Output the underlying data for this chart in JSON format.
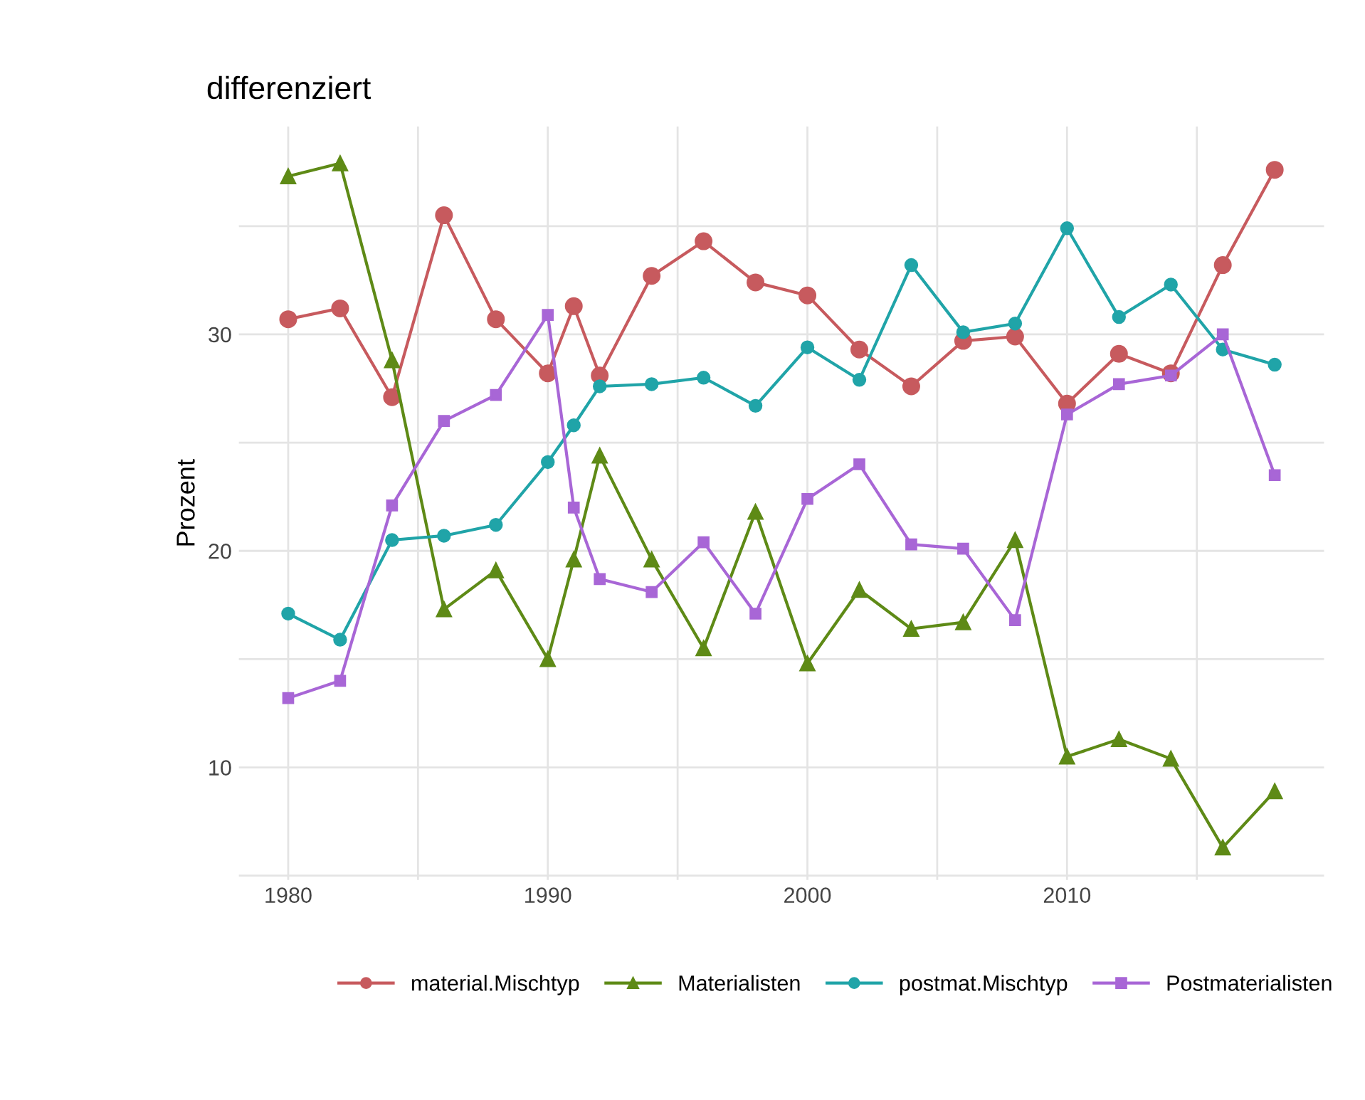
{
  "chart_data": {
    "type": "line",
    "title": "differenziert",
    "ylabel": "Prozent",
    "x": [
      1980,
      1982,
      1984,
      1986,
      1988,
      1990,
      1991,
      1992,
      1994,
      1996,
      1998,
      2000,
      2002,
      2004,
      2006,
      2008,
      2010,
      2012,
      2014,
      2016,
      2018
    ],
    "series": [
      {
        "name": "material.Mischtyp",
        "color": "#c75a5e",
        "marker": "circle",
        "values": [
          30.7,
          31.2,
          27.1,
          35.5,
          30.7,
          28.2,
          31.3,
          28.1,
          32.7,
          34.3,
          32.4,
          31.8,
          29.3,
          27.6,
          29.7,
          29.9,
          26.8,
          29.1,
          28.2,
          33.2,
          37.6
        ]
      },
      {
        "name": "Materialisten",
        "color": "#5e8a16",
        "marker": "triangle",
        "values": [
          37.3,
          37.9,
          28.8,
          17.3,
          19.1,
          15.0,
          19.6,
          24.4,
          19.6,
          15.5,
          21.8,
          14.8,
          18.2,
          16.4,
          16.7,
          20.5,
          10.5,
          11.3,
          10.4,
          6.3,
          8.9
        ]
      },
      {
        "name": "postmat.Mischtyp",
        "color": "#20a4a8",
        "marker": "circle",
        "values": [
          17.1,
          15.9,
          20.5,
          20.7,
          21.2,
          24.1,
          25.8,
          27.6,
          27.7,
          28.0,
          26.7,
          29.4,
          27.9,
          33.2,
          30.1,
          30.5,
          34.9,
          30.8,
          32.3,
          29.3,
          28.6
        ]
      },
      {
        "name": "Postmaterialisten",
        "color": "#a866d6",
        "marker": "square",
        "values": [
          13.2,
          14.0,
          22.1,
          26.0,
          27.2,
          30.9,
          22.0,
          18.7,
          18.1,
          20.4,
          17.1,
          22.4,
          24.0,
          20.3,
          20.1,
          16.8,
          26.3,
          27.7,
          28.1,
          30.0,
          23.5
        ]
      }
    ],
    "xlim": [
      1978.1,
      2019.9
    ],
    "ylim": [
      4.8,
      39.6
    ],
    "xticks": [
      1980,
      {
        "value": 1985,
        "label": null
      },
      1990,
      {
        "value": 1995,
        "label": null
      },
      2000,
      {
        "value": 2005,
        "label": null
      },
      2010,
      {
        "value": 2015,
        "label": null
      }
    ],
    "yticks": [
      {
        "value": 5,
        "label": null
      },
      10,
      {
        "value": 15,
        "label": null
      },
      20,
      {
        "value": 25,
        "label": null
      },
      30,
      {
        "value": 35,
        "label": null
      }
    ],
    "grid": true,
    "legend": "bottom",
    "line_style": "solid"
  }
}
